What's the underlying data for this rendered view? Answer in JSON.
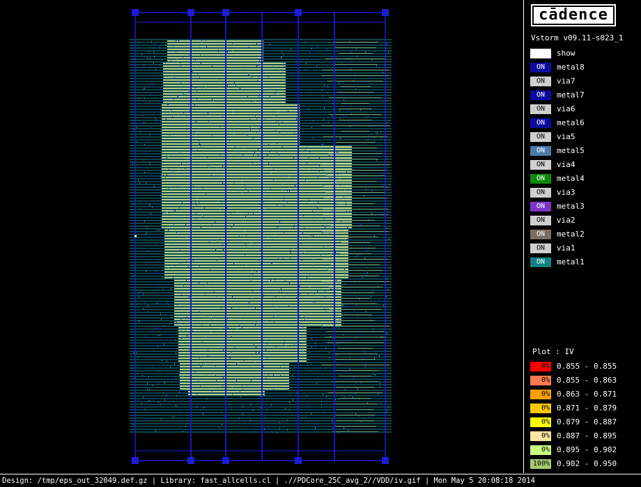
{
  "logo": {
    "text": "cādence"
  },
  "version": "Vstorm v09.11-s023_1",
  "layers": [
    {
      "status": "",
      "name": "show",
      "color": "#ffffff"
    },
    {
      "status": "ON",
      "name": "metal8",
      "color": "#0b0ba0"
    },
    {
      "status": "ON",
      "name": "via7",
      "color": "#cfcfcf"
    },
    {
      "status": "ON",
      "name": "metal7",
      "color": "#0b0ba0"
    },
    {
      "status": "ON",
      "name": "via6",
      "color": "#cfcfcf"
    },
    {
      "status": "ON",
      "name": "metal6",
      "color": "#0b0ba0"
    },
    {
      "status": "ON",
      "name": "via5",
      "color": "#cfcfcf"
    },
    {
      "status": "ON",
      "name": "metal5",
      "color": "#4a7aa8"
    },
    {
      "status": "ON",
      "name": "via4",
      "color": "#cfcfcf"
    },
    {
      "status": "ON",
      "name": "metal4",
      "color": "#0a8a0a"
    },
    {
      "status": "ON",
      "name": "via3",
      "color": "#cfcfcf"
    },
    {
      "status": "ON",
      "name": "metal3",
      "color": "#7a35c8"
    },
    {
      "status": "ON",
      "name": "via2",
      "color": "#cfcfcf"
    },
    {
      "status": "ON",
      "name": "metal2",
      "color": "#7a6e62"
    },
    {
      "status": "ON",
      "name": "via1",
      "color": "#cfcfcf"
    },
    {
      "status": "ON",
      "name": "metal1",
      "color": "#0f8282"
    }
  ],
  "plot": {
    "title": "Plot : IV",
    "legend": [
      {
        "pct": "0%",
        "range": "0.855 - 0.855",
        "color": "#ff0000"
      },
      {
        "pct": "0%",
        "range": "0.855 - 0.863",
        "color": "#ff7a50"
      },
      {
        "pct": "0%",
        "range": "0.863 - 0.871",
        "color": "#ffa000"
      },
      {
        "pct": "0%",
        "range": "0.871 - 0.879",
        "color": "#ffc800"
      },
      {
        "pct": "0%",
        "range": "0.879 - 0.887",
        "color": "#ffff00"
      },
      {
        "pct": "0%",
        "range": "0.887 - 0.895",
        "color": "#ffe6a0"
      },
      {
        "pct": "0%",
        "range": "0.895 - 0.902",
        "color": "#c8ff80"
      },
      {
        "pct": "100%",
        "range": "0.902 - 0.950",
        "color": "#a8c870"
      }
    ]
  },
  "status_bar": "Design: /tmp/eps_out_32049.def.gz | Library: fast_allcells.cl | .//PDCore_25C_avg_2//VDD/iv.gif | Mon May  5 20:08:18 2014",
  "colors": {
    "stripe_fill": "#b8d48a",
    "grid_line": "#1a8ea0",
    "metal_vertical": "#1414c8",
    "ring": "#1c1cd8",
    "background": "#000000"
  }
}
